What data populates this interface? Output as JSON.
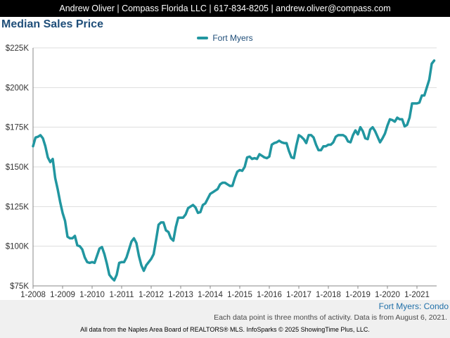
{
  "header": {
    "contact": "Andrew Oliver | Compass Florida LLC | 617-834-8205 | andrew.oliver@compass.com"
  },
  "chart_data": {
    "type": "line",
    "title": "Median Sales Price",
    "xlabel": "",
    "ylabel": "",
    "x_ticks": [
      "1-2008",
      "1-2009",
      "1-2010",
      "1-2011",
      "1-2012",
      "1-2013",
      "1-2014",
      "1-2015",
      "1-2016",
      "1-2017",
      "1-2018",
      "1-2019",
      "1-2020",
      "1-2021"
    ],
    "y_ticks": [
      "$75K",
      "$100K",
      "$125K",
      "$150K",
      "$175K",
      "$200K",
      "$225K"
    ],
    "ylim": [
      75000,
      225000
    ],
    "xlim": [
      "2008-01",
      "2021-09"
    ],
    "grid": "horizontal",
    "legend_position": "top-center",
    "series": [
      {
        "name": "Fort Myers",
        "color": "#2196a0",
        "points": [
          [
            "2008-01",
            163000
          ],
          [
            "2008-02",
            168500
          ],
          [
            "2008-03",
            169000
          ],
          [
            "2008-04",
            170000
          ],
          [
            "2008-05",
            168000
          ],
          [
            "2008-06",
            163000
          ],
          [
            "2008-07",
            156000
          ],
          [
            "2008-08",
            153000
          ],
          [
            "2008-09",
            155000
          ],
          [
            "2008-10",
            143000
          ],
          [
            "2008-11",
            136000
          ],
          [
            "2008-12",
            128000
          ],
          [
            "2009-01",
            121000
          ],
          [
            "2009-02",
            116000
          ],
          [
            "2009-03",
            106000
          ],
          [
            "2009-04",
            105000
          ],
          [
            "2009-05",
            105000
          ],
          [
            "2009-06",
            106500
          ],
          [
            "2009-07",
            100500
          ],
          [
            "2009-08",
            100000
          ],
          [
            "2009-09",
            98000
          ],
          [
            "2009-10",
            93000
          ],
          [
            "2009-11",
            90000
          ],
          [
            "2009-12",
            89500
          ],
          [
            "2010-01",
            90000
          ],
          [
            "2010-02",
            89500
          ],
          [
            "2010-03",
            94000
          ],
          [
            "2010-04",
            98500
          ],
          [
            "2010-05",
            99500
          ],
          [
            "2010-06",
            95000
          ],
          [
            "2010-07",
            89000
          ],
          [
            "2010-08",
            82000
          ],
          [
            "2010-09",
            80000
          ],
          [
            "2010-10",
            78500
          ],
          [
            "2010-11",
            82000
          ],
          [
            "2010-12",
            89500
          ],
          [
            "2011-01",
            90000
          ],
          [
            "2011-02",
            90000
          ],
          [
            "2011-03",
            93000
          ],
          [
            "2011-04",
            98000
          ],
          [
            "2011-05",
            103000
          ],
          [
            "2011-06",
            105000
          ],
          [
            "2011-07",
            102000
          ],
          [
            "2011-08",
            94000
          ],
          [
            "2011-09",
            88000
          ],
          [
            "2011-10",
            84500
          ],
          [
            "2011-11",
            88000
          ],
          [
            "2011-12",
            90000
          ],
          [
            "2012-01",
            92000
          ],
          [
            "2012-02",
            95000
          ],
          [
            "2012-03",
            104000
          ],
          [
            "2012-04",
            113500
          ],
          [
            "2012-05",
            115000
          ],
          [
            "2012-06",
            115000
          ],
          [
            "2012-07",
            110000
          ],
          [
            "2012-08",
            109000
          ],
          [
            "2012-09",
            105000
          ],
          [
            "2012-10",
            103500
          ],
          [
            "2012-11",
            112000
          ],
          [
            "2012-12",
            118000
          ],
          [
            "2013-01",
            118000
          ],
          [
            "2013-02",
            118000
          ],
          [
            "2013-03",
            120000
          ],
          [
            "2013-04",
            124000
          ],
          [
            "2013-05",
            125000
          ],
          [
            "2013-06",
            126000
          ],
          [
            "2013-07",
            124500
          ],
          [
            "2013-08",
            121000
          ],
          [
            "2013-09",
            121500
          ],
          [
            "2013-10",
            126000
          ],
          [
            "2013-11",
            127000
          ],
          [
            "2013-12",
            130000
          ],
          [
            "2014-01",
            133000
          ],
          [
            "2014-02",
            134000
          ],
          [
            "2014-03",
            135000
          ],
          [
            "2014-04",
            136000
          ],
          [
            "2014-05",
            139000
          ],
          [
            "2014-06",
            140000
          ],
          [
            "2014-07",
            140000
          ],
          [
            "2014-08",
            139000
          ],
          [
            "2014-09",
            138000
          ],
          [
            "2014-10",
            138000
          ],
          [
            "2014-11",
            143000
          ],
          [
            "2014-12",
            147000
          ],
          [
            "2015-01",
            148000
          ],
          [
            "2015-02",
            147500
          ],
          [
            "2015-03",
            150000
          ],
          [
            "2015-04",
            156000
          ],
          [
            "2015-05",
            156500
          ],
          [
            "2015-06",
            155000
          ],
          [
            "2015-07",
            155500
          ],
          [
            "2015-08",
            155000
          ],
          [
            "2015-09",
            158000
          ],
          [
            "2015-10",
            157000
          ],
          [
            "2015-11",
            156000
          ],
          [
            "2015-12",
            155500
          ],
          [
            "2016-01",
            156500
          ],
          [
            "2016-02",
            164000
          ],
          [
            "2016-03",
            165000
          ],
          [
            "2016-04",
            165500
          ],
          [
            "2016-05",
            166500
          ],
          [
            "2016-06",
            165500
          ],
          [
            "2016-07",
            165000
          ],
          [
            "2016-08",
            165000
          ],
          [
            "2016-09",
            160000
          ],
          [
            "2016-10",
            156000
          ],
          [
            "2016-11",
            155500
          ],
          [
            "2016-12",
            163500
          ],
          [
            "2017-01",
            170000
          ],
          [
            "2017-02",
            169000
          ],
          [
            "2017-03",
            167500
          ],
          [
            "2017-04",
            165000
          ],
          [
            "2017-05",
            170000
          ],
          [
            "2017-06",
            170000
          ],
          [
            "2017-07",
            168500
          ],
          [
            "2017-08",
            164000
          ],
          [
            "2017-09",
            160500
          ],
          [
            "2017-10",
            160500
          ],
          [
            "2017-11",
            163000
          ],
          [
            "2017-12",
            163000
          ],
          [
            "2018-01",
            164000
          ],
          [
            "2018-02",
            164000
          ],
          [
            "2018-03",
            165500
          ],
          [
            "2018-04",
            169000
          ],
          [
            "2018-05",
            170000
          ],
          [
            "2018-06",
            170000
          ],
          [
            "2018-07",
            170000
          ],
          [
            "2018-08",
            169000
          ],
          [
            "2018-09",
            166000
          ],
          [
            "2018-10",
            165500
          ],
          [
            "2018-11",
            170000
          ],
          [
            "2018-12",
            173000
          ],
          [
            "2019-01",
            170500
          ],
          [
            "2019-02",
            175000
          ],
          [
            "2019-03",
            172500
          ],
          [
            "2019-04",
            168000
          ],
          [
            "2019-05",
            167500
          ],
          [
            "2019-06",
            173500
          ],
          [
            "2019-07",
            175000
          ],
          [
            "2019-08",
            172500
          ],
          [
            "2019-09",
            169000
          ],
          [
            "2019-10",
            165500
          ],
          [
            "2019-11",
            168000
          ],
          [
            "2019-12",
            171000
          ],
          [
            "2020-01",
            176000
          ],
          [
            "2020-02",
            180000
          ],
          [
            "2020-03",
            179500
          ],
          [
            "2020-04",
            178500
          ],
          [
            "2020-05",
            181000
          ],
          [
            "2020-06",
            180000
          ],
          [
            "2020-07",
            180000
          ],
          [
            "2020-08",
            175500
          ],
          [
            "2020-09",
            176500
          ],
          [
            "2020-10",
            181000
          ],
          [
            "2020-11",
            190000
          ],
          [
            "2020-12",
            190000
          ],
          [
            "2021-01",
            190000
          ],
          [
            "2021-02",
            190500
          ],
          [
            "2021-03",
            195000
          ],
          [
            "2021-04",
            195000
          ],
          [
            "2021-05",
            200000
          ],
          [
            "2021-06",
            205000
          ],
          [
            "2021-07",
            215000
          ],
          [
            "2021-08",
            217000
          ]
        ]
      }
    ]
  },
  "legend": {
    "series_label": "Fort Myers"
  },
  "footer": {
    "series_caption": "Fort Myers: Condo",
    "note": "Each data point is three months of activity. Data is from August 6, 2021.",
    "source": "All data from the Naples Area Board of REALTORS® MLS. InfoSparks © 2025 ShowingTime Plus, LLC."
  }
}
